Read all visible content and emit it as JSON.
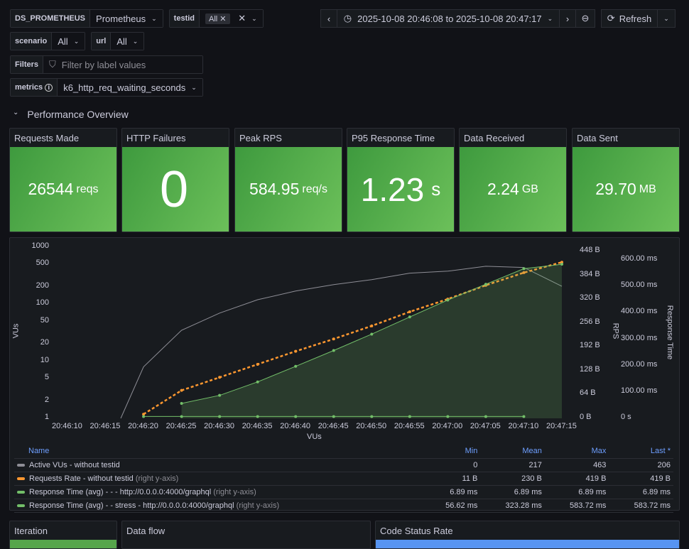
{
  "variables": {
    "datasource": {
      "label": "DS_PROMETHEUS",
      "value": "Prometheus"
    },
    "testid": {
      "label": "testid",
      "chip": "All"
    },
    "scenario": {
      "label": "scenario",
      "value": "All"
    },
    "url": {
      "label": "url",
      "value": "All"
    },
    "filters": {
      "label": "Filters",
      "placeholder": "Filter by label values"
    },
    "metrics": {
      "label": "metrics",
      "value": "k6_http_req_waiting_seconds"
    }
  },
  "time_picker": {
    "range": "2025-10-08 20:46:08 to 2025-10-08 20:47:17",
    "refresh_label": "Refresh"
  },
  "row": {
    "title": "Performance Overview"
  },
  "stats": [
    {
      "title": "Requests Made",
      "value": "26544",
      "unit": "reqs"
    },
    {
      "title": "HTTP Failures",
      "value": "0",
      "unit": ""
    },
    {
      "title": "Peak RPS",
      "value": "584.95",
      "unit": "req/s"
    },
    {
      "title": "P95 Response Time",
      "value": "1.23",
      "unit": "s"
    },
    {
      "title": "Data Received",
      "value": "2.24",
      "unit": "GB"
    },
    {
      "title": "Data Sent",
      "value": "29.70",
      "unit": "MB"
    }
  ],
  "colors": {
    "stat_green": "#56a64b",
    "active_vus": "#8e8e96",
    "requests_rate": "#ff9830",
    "response_time": "#73bf69"
  },
  "chart_data": {
    "type": "line",
    "xlabel": "VUs",
    "x_ticks": [
      "20:46:10",
      "20:46:15",
      "20:46:20",
      "20:46:25",
      "20:46:30",
      "20:46:35",
      "20:46:40",
      "20:46:45",
      "20:46:50",
      "20:46:55",
      "20:47:00",
      "20:47:05",
      "20:47:10",
      "20:47:15"
    ],
    "y_left": {
      "label": "VUs",
      "scale": "log",
      "ticks": [
        "1",
        "2",
        "5",
        "10",
        "20",
        "50",
        "100",
        "200",
        "500",
        "1000"
      ],
      "range": [
        1,
        1000
      ]
    },
    "y_right1": {
      "label": "RPS",
      "ticks": [
        "0 B",
        "64 B",
        "128 B",
        "192 B",
        "256 B",
        "320 B",
        "384 B",
        "448 B"
      ],
      "range": [
        0,
        448
      ]
    },
    "y_right2": {
      "label": "Response Time",
      "ticks": [
        "0 s",
        "100.00 ms",
        "200.00 ms",
        "300.00 ms",
        "400.00 ms",
        "500.00 ms",
        "600.00 ms"
      ],
      "range": [
        0,
        600
      ]
    },
    "x": [
      "20:46:17",
      "20:46:20",
      "20:46:25",
      "20:46:30",
      "20:46:35",
      "20:46:40",
      "20:46:45",
      "20:46:50",
      "20:46:55",
      "20:47:00",
      "20:47:05",
      "20:47:10",
      "20:47:15"
    ],
    "series": [
      {
        "name": "Active VUs - without testid",
        "axis": "left",
        "values": [
          1,
          8,
          35,
          70,
          120,
          170,
          220,
          270,
          350,
          380,
          463,
          440,
          206
        ]
      },
      {
        "name": "Requests Rate - without testid",
        "axis": "right1",
        "values": [
          null,
          11,
          75,
          110,
          145,
          180,
          213,
          248,
          286,
          320,
          357,
          391,
          419
        ]
      },
      {
        "name": "Response Time (avg) - - - http://0.0.0.0:4000/graphql",
        "axis": "right2",
        "values": [
          null,
          6.89,
          6.89,
          6.89,
          6.89,
          6.89,
          6.89,
          6.89,
          6.89,
          6.89,
          6.89,
          6.89,
          null
        ]
      },
      {
        "name": "Response Time (avg) - - stress - http://0.0.0.0:4000/graphql",
        "axis": "right2",
        "values": [
          null,
          null,
          56.62,
          87,
          138,
          197,
          257,
          319,
          384,
          448,
          508,
          567,
          583.72
        ]
      }
    ]
  },
  "legend": {
    "headers": [
      "Name",
      "Min",
      "Mean",
      "Max",
      "Last *"
    ],
    "rows": [
      {
        "name": "Active VUs - without testid",
        "suffix": "",
        "min": "0",
        "mean": "217",
        "max": "463",
        "last": "206",
        "color": "#8e8e96"
      },
      {
        "name": "Requests Rate - without testid",
        "suffix": "(right y-axis)",
        "min": "11 B",
        "mean": "230 B",
        "max": "419 B",
        "last": "419 B",
        "color": "#ff9830"
      },
      {
        "name": "Response Time (avg) - - - http://0.0.0.0:4000/graphql",
        "suffix": "(right y-axis)",
        "min": "6.89 ms",
        "mean": "6.89 ms",
        "max": "6.89 ms",
        "last": "6.89 ms",
        "color": "#73bf69"
      },
      {
        "name": "Response Time (avg) - - stress - http://0.0.0.0:4000/graphql",
        "suffix": "(right y-axis)",
        "min": "56.62 ms",
        "mean": "323.28 ms",
        "max": "583.72 ms",
        "last": "583.72 ms",
        "color": "#73bf69"
      }
    ]
  },
  "bottom_panels": [
    {
      "title": "Iteration"
    },
    {
      "title": "Data flow"
    },
    {
      "title": "Code Status Rate"
    }
  ]
}
